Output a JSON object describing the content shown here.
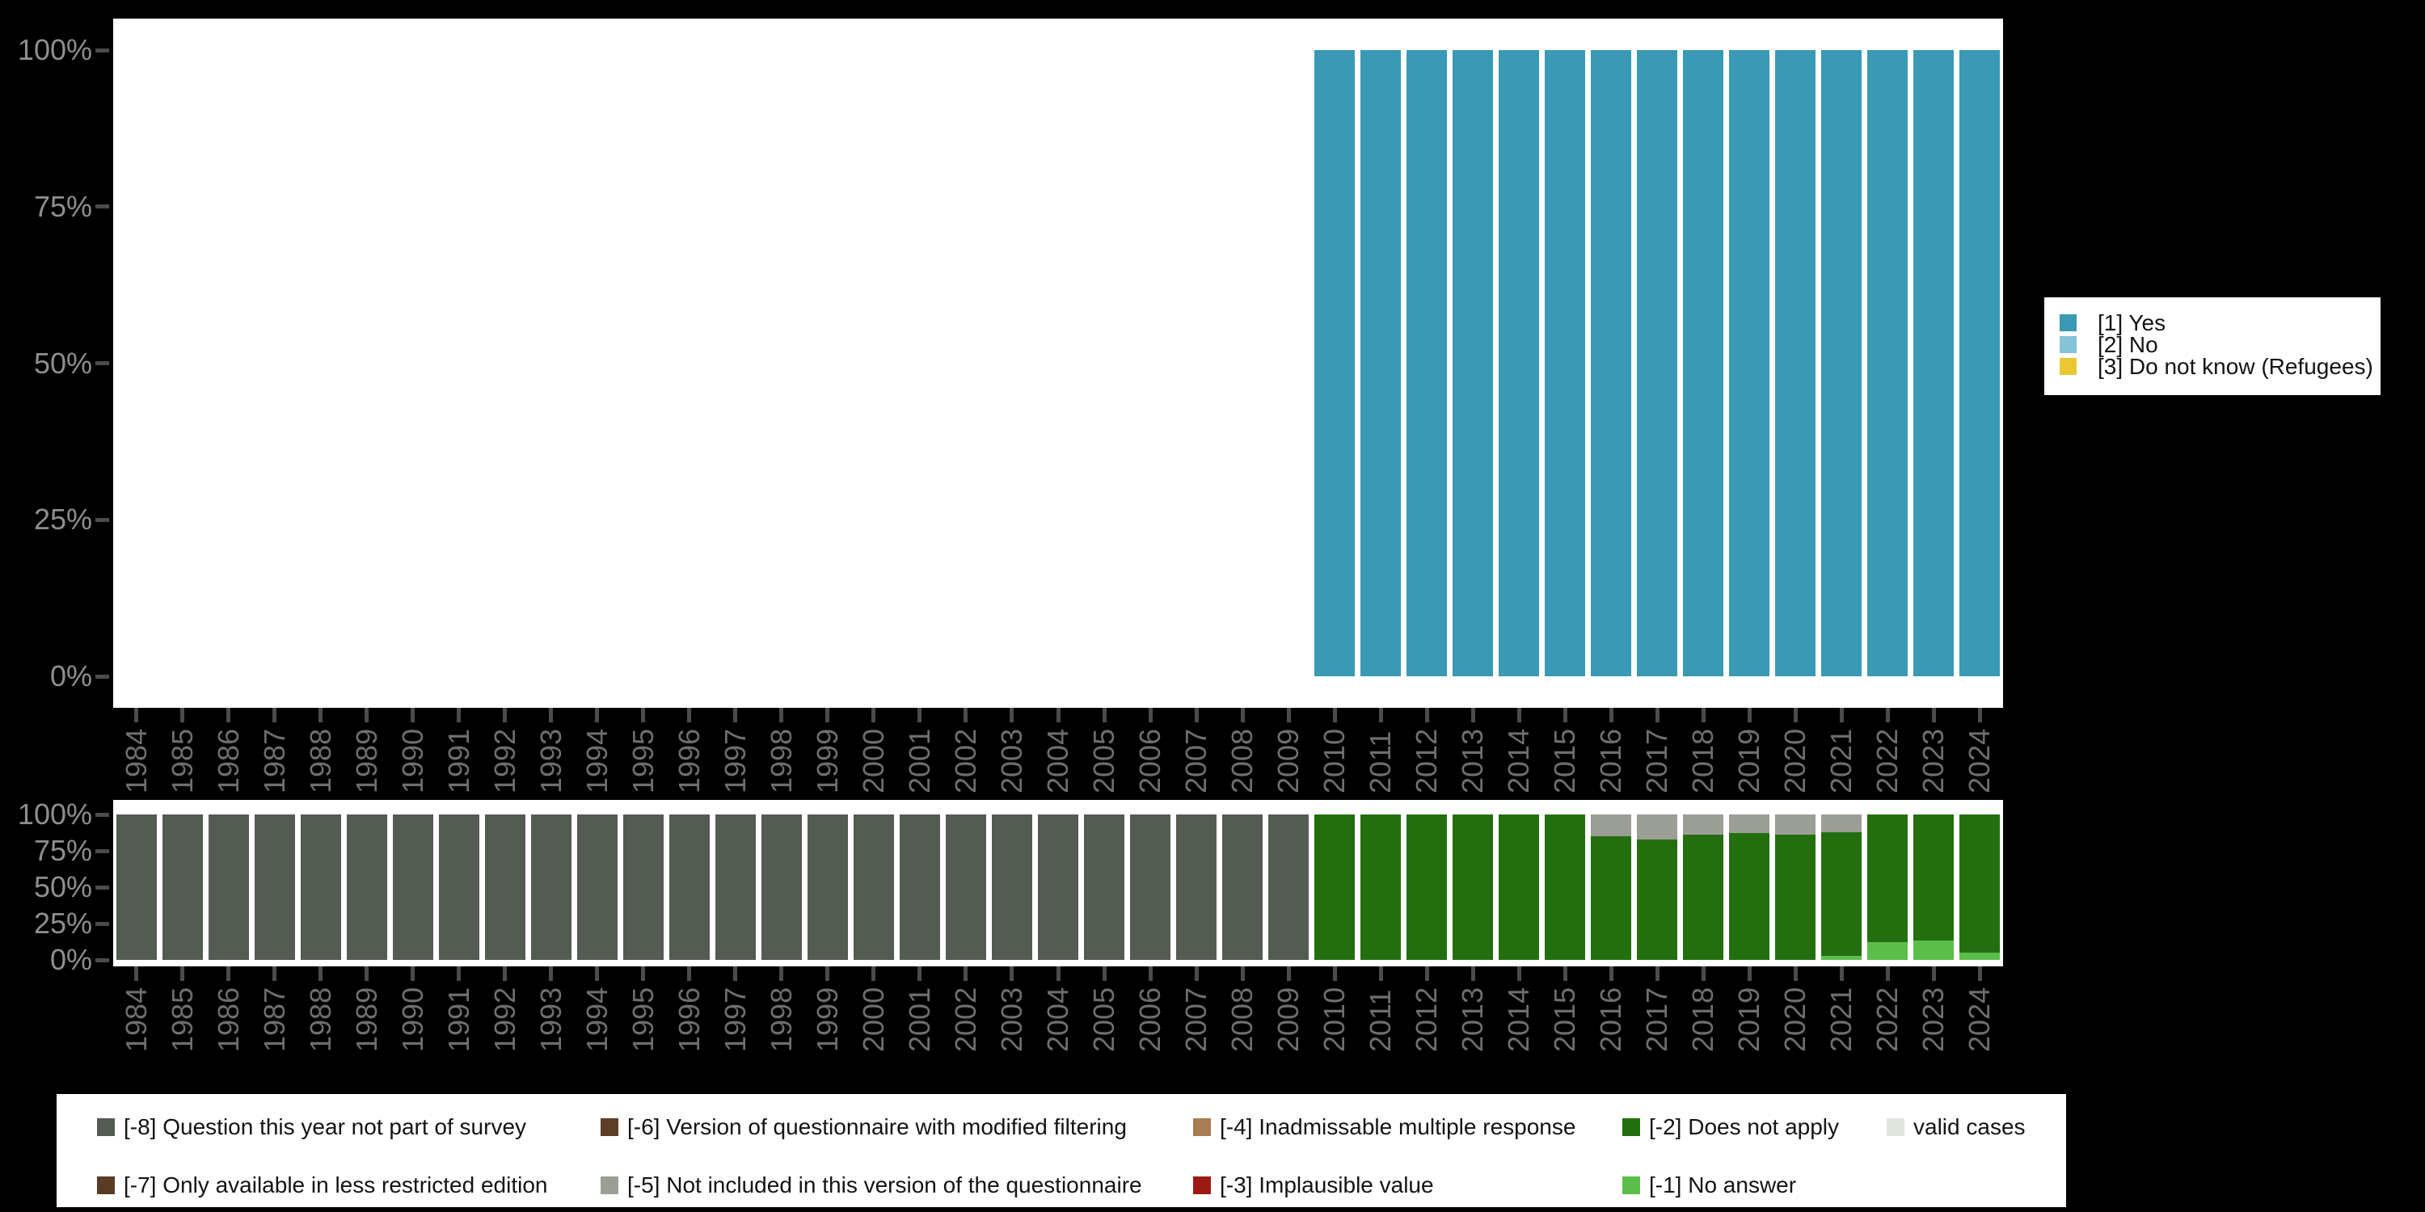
{
  "colors": {
    "background": "#000000",
    "plot_background": "#ffffff",
    "y_axis_text": "#8E8E8E",
    "x_axis_text": "#6E6E6E",
    "tick": "#4B4B4B",
    "legend_text": "#141414"
  },
  "chart_data": [
    {
      "id": "answers",
      "type": "bar",
      "stacked": true,
      "ylim": [
        0,
        100
      ],
      "y_ticks": [
        "100%",
        "75%",
        "50%",
        "25%",
        "0%"
      ],
      "x": [
        1984,
        1985,
        1986,
        1987,
        1988,
        1989,
        1990,
        1991,
        1992,
        1993,
        1994,
        1995,
        1996,
        1997,
        1998,
        1999,
        2000,
        2001,
        2002,
        2003,
        2004,
        2005,
        2006,
        2007,
        2008,
        2009,
        2010,
        2011,
        2012,
        2013,
        2014,
        2015,
        2016,
        2017,
        2018,
        2019,
        2020,
        2021,
        2022,
        2023,
        2024
      ],
      "series": [
        {
          "name": "[1] Yes",
          "color": "#3A99B4",
          "values": [
            0,
            0,
            0,
            0,
            0,
            0,
            0,
            0,
            0,
            0,
            0,
            0,
            0,
            0,
            0,
            0,
            0,
            0,
            0,
            0,
            0,
            0,
            0,
            0,
            0,
            0,
            100,
            100,
            100,
            100,
            100,
            100,
            100,
            100,
            100,
            100,
            100,
            100,
            100,
            100,
            100
          ]
        }
      ],
      "legend": {
        "position": "right",
        "items": [
          {
            "label": "[1] Yes",
            "color": "#3A99B4"
          },
          {
            "label": "[2] No",
            "color": "#85C3D6"
          },
          {
            "label": "[3] Do not know (Refugees)",
            "color": "#E9C834"
          }
        ]
      }
    },
    {
      "id": "missings",
      "type": "bar",
      "stacked": true,
      "ylim": [
        0,
        100
      ],
      "y_ticks": [
        "100%",
        "75%",
        "50%",
        "25%",
        "0%"
      ],
      "x": [
        1984,
        1985,
        1986,
        1987,
        1988,
        1989,
        1990,
        1991,
        1992,
        1993,
        1994,
        1995,
        1996,
        1997,
        1998,
        1999,
        2000,
        2001,
        2002,
        2003,
        2004,
        2005,
        2006,
        2007,
        2008,
        2009,
        2010,
        2011,
        2012,
        2013,
        2014,
        2015,
        2016,
        2017,
        2018,
        2019,
        2020,
        2021,
        2022,
        2023,
        2024
      ],
      "series": [
        {
          "name": "[-8] Question this year not part of survey",
          "color": "#545B52",
          "values": [
            100,
            100,
            100,
            100,
            100,
            100,
            100,
            100,
            100,
            100,
            100,
            100,
            100,
            100,
            100,
            100,
            100,
            100,
            100,
            100,
            100,
            100,
            100,
            100,
            100,
            100,
            0,
            0,
            0,
            0,
            0,
            0,
            0,
            0,
            0,
            0,
            0,
            0,
            0,
            0,
            0
          ]
        },
        {
          "name": "[-5] Not included in this version of the questionnaire",
          "color": "#9A9E94",
          "values": [
            0,
            0,
            0,
            0,
            0,
            0,
            0,
            0,
            0,
            0,
            0,
            0,
            0,
            0,
            0,
            0,
            0,
            0,
            0,
            0,
            0,
            0,
            0,
            0,
            0,
            0,
            0,
            0,
            0,
            0,
            0,
            0,
            15,
            17,
            14,
            13,
            14,
            12,
            0,
            0,
            0
          ]
        },
        {
          "name": "[-2] Does not apply",
          "color": "#236F10",
          "values": [
            0,
            0,
            0,
            0,
            0,
            0,
            0,
            0,
            0,
            0,
            0,
            0,
            0,
            0,
            0,
            0,
            0,
            0,
            0,
            0,
            0,
            0,
            0,
            0,
            0,
            0,
            100,
            100,
            100,
            100,
            100,
            100,
            85,
            83,
            86,
            87,
            86,
            85,
            87.5,
            86.5,
            95
          ]
        },
        {
          "name": "[-1] No answer",
          "color": "#5BBE49",
          "values": [
            0,
            0,
            0,
            0,
            0,
            0,
            0,
            0,
            0,
            0,
            0,
            0,
            0,
            0,
            0,
            0,
            0,
            0,
            0,
            0,
            0,
            0,
            0,
            0,
            0,
            0,
            0,
            0,
            0,
            0,
            0,
            0,
            0,
            0,
            0,
            0,
            0,
            3,
            12.5,
            13.5,
            5
          ]
        }
      ],
      "legend": {
        "position": "bottom",
        "columns": [
          [
            {
              "label": "[-8] Question this year not part of survey",
              "color": "#545B52"
            },
            {
              "label": "[-7] Only available in less restricted edition",
              "color": "#5A3B24"
            }
          ],
          [
            {
              "label": "[-6] Version of questionnaire with modified filtering",
              "color": "#5F3E26"
            },
            {
              "label": "[-5] Not included in this version of the questionnaire",
              "color": "#9A9E94"
            }
          ],
          [
            {
              "label": "[-4] Inadmissable multiple response",
              "color": "#A87C54"
            },
            {
              "label": "[-3] Implausible value",
              "color": "#9E1A14"
            }
          ],
          [
            {
              "label": "[-2] Does not apply",
              "color": "#236F10"
            },
            {
              "label": "[-1] No answer",
              "color": "#5BBE49"
            }
          ],
          [
            {
              "label": "valid cases",
              "color": "#E2E6DE"
            }
          ]
        ]
      }
    }
  ]
}
